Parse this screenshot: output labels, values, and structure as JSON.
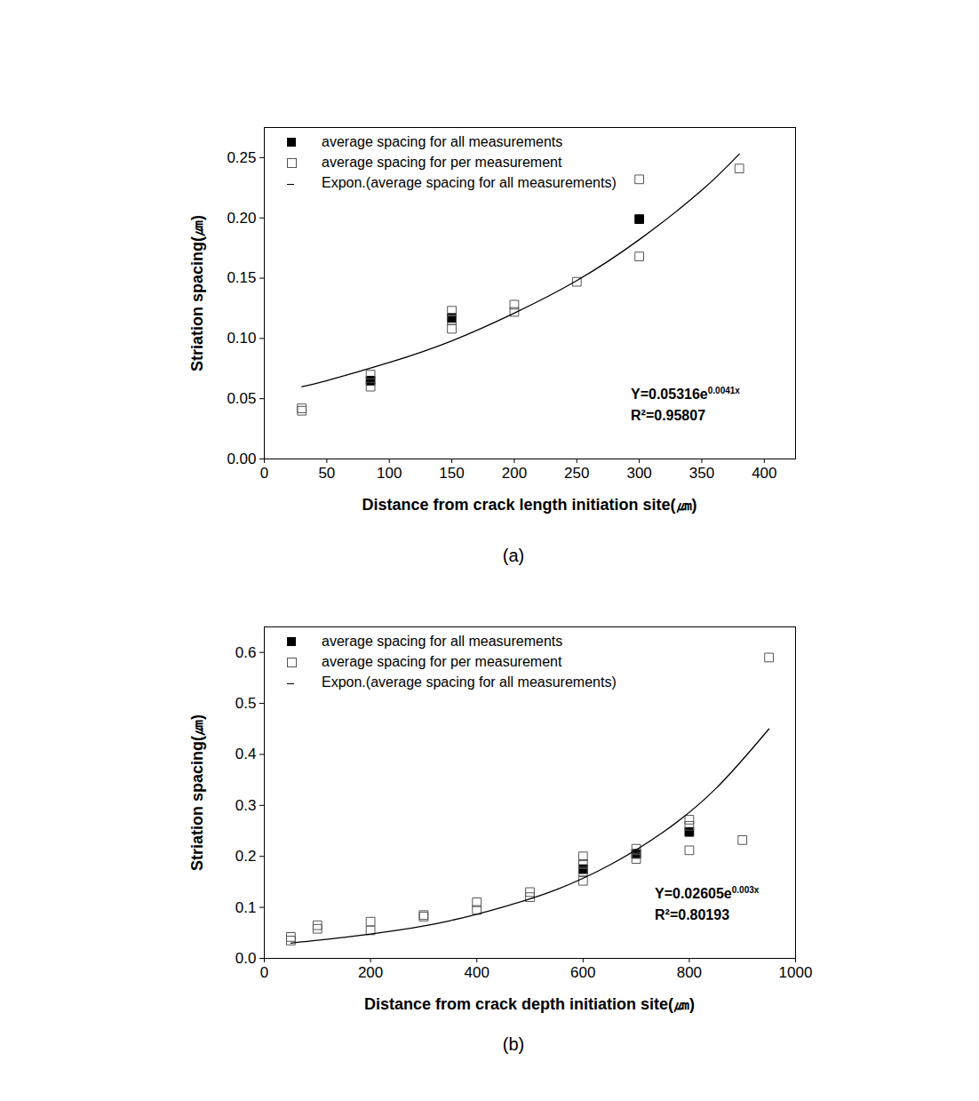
{
  "chart_data": [
    {
      "type": "scatter",
      "title": "(a)",
      "x_label": "Distance from crack length initiation site(㎛)",
      "y_label": "Striation spacing(㎛)",
      "xlim": [
        0,
        425
      ],
      "xticks": [
        0,
        50,
        100,
        150,
        200,
        250,
        300,
        350,
        400
      ],
      "ylim": [
        0,
        0.275
      ],
      "yticks": [
        {
          "value": 0,
          "label": "0.00"
        },
        {
          "value": 0.05,
          "label": "0.05"
        },
        {
          "value": 0.1,
          "label": "0.10"
        },
        {
          "value": 0.15,
          "label": "0.15"
        },
        {
          "value": 0.2,
          "label": "0.20"
        },
        {
          "value": 0.25,
          "label": "0.25"
        }
      ],
      "legend": "top-left",
      "annotations": [
        {
          "text": "Y=0.05316e",
          "superscript": "0.0041x"
        },
        {
          "text": "R²=0.95807"
        }
      ],
      "series": [
        {
          "name": "average spacing for all measurements",
          "type": "scatter",
          "marker": "filled_square",
          "color": "#000000",
          "x": [
            85,
            150,
            300
          ],
          "values": [
            0.065,
            0.117,
            0.199
          ]
        },
        {
          "name": "average spacing for per measurement",
          "type": "scatter",
          "marker": "open_square",
          "color": "#555555",
          "x": [
            30,
            30,
            85,
            85,
            150,
            150,
            150,
            200,
            200,
            250,
            300,
            300,
            380
          ],
          "values": [
            0.04,
            0.042,
            0.06,
            0.07,
            0.108,
            0.115,
            0.123,
            0.122,
            0.128,
            0.147,
            0.168,
            0.232,
            0.241
          ]
        },
        {
          "name": "Expon.(average spacing for all measurements)",
          "type": "line",
          "line_style": "solid",
          "color": "#000000",
          "x": [
            30,
            50,
            100,
            150,
            200,
            250,
            300,
            350,
            380
          ],
          "values": [
            0.06,
            0.065,
            0.08,
            0.098,
            0.121,
            0.148,
            0.182,
            0.223,
            0.253
          ]
        }
      ]
    },
    {
      "type": "scatter",
      "title": "(b)",
      "x_label": "Distance from crack depth initiation site(㎛)",
      "y_label": "Striation spacing(㎛)",
      "xlim": [
        0,
        1000
      ],
      "xticks": [
        0,
        200,
        400,
        600,
        800,
        1000
      ],
      "ylim": [
        0,
        0.65
      ],
      "yticks": [
        {
          "value": 0,
          "label": "0.0"
        },
        {
          "value": 0.1,
          "label": "0.1"
        },
        {
          "value": 0.2,
          "label": "0.2"
        },
        {
          "value": 0.3,
          "label": "0.3"
        },
        {
          "value": 0.4,
          "label": "0.4"
        },
        {
          "value": 0.5,
          "label": "0.5"
        },
        {
          "value": 0.6,
          "label": "0.6"
        }
      ],
      "legend": "top-left",
      "annotations": [
        {
          "text": "Y=0.02605e",
          "superscript": "0.003x"
        },
        {
          "text": "R²=0.80193"
        }
      ],
      "series": [
        {
          "name": "average spacing for all measurements",
          "type": "scatter",
          "marker": "filled_square",
          "color": "#000000",
          "x": [
            600,
            700,
            800
          ],
          "values": [
            0.175,
            0.205,
            0.248
          ]
        },
        {
          "name": "average spacing for per measurement",
          "type": "scatter",
          "marker": "open_square",
          "color": "#555555",
          "x": [
            50,
            50,
            100,
            100,
            200,
            200,
            300,
            300,
            400,
            400,
            500,
            500,
            600,
            600,
            600,
            600,
            700,
            700,
            700,
            800,
            800,
            800,
            900,
            950
          ],
          "values": [
            0.035,
            0.042,
            0.058,
            0.065,
            0.055,
            0.072,
            0.082,
            0.085,
            0.095,
            0.11,
            0.12,
            0.13,
            0.152,
            0.17,
            0.185,
            0.2,
            0.195,
            0.205,
            0.215,
            0.212,
            0.26,
            0.272,
            0.232,
            0.59
          ]
        },
        {
          "name": "Expon.(average spacing for all measurements)",
          "type": "line",
          "line_style": "solid",
          "color": "#000000",
          "x": [
            50,
            150,
            250,
            350,
            450,
            550,
            650,
            750,
            850,
            950
          ],
          "values": [
            0.03,
            0.041,
            0.055,
            0.074,
            0.101,
            0.135,
            0.183,
            0.247,
            0.333,
            0.45
          ]
        }
      ]
    }
  ]
}
